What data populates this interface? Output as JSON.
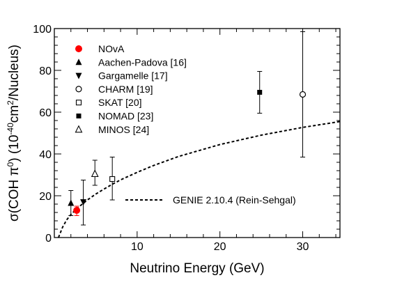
{
  "chart_data": {
    "type": "scatter",
    "xlabel": "Neutrino Energy (GeV)",
    "ylabel_parts": [
      "σ(COH π",
      "0",
      ") (10",
      "-40",
      "cm",
      "2",
      "/Nucleus)"
    ],
    "xlim": [
      0,
      34.5
    ],
    "ylim": [
      0,
      100
    ],
    "x_ticks": [
      10,
      20,
      30
    ],
    "y_ticks": [
      0,
      20,
      40,
      60,
      80,
      100
    ],
    "grid": false,
    "legend_position": "top-left",
    "series": [
      {
        "name": "NOvA",
        "marker": "filled-circle",
        "color": "#ff0000",
        "points": [
          {
            "x": 2.7,
            "y": 13.0,
            "ylow": 10.5,
            "yhigh": 15.0
          }
        ]
      },
      {
        "name": "Aachen-Padova [16]",
        "marker": "filled-triangle-up",
        "color": "#000000",
        "points": [
          {
            "x": 2.0,
            "y": 16.5,
            "ylow": 10.5,
            "yhigh": 22.5
          }
        ]
      },
      {
        "name": "Gargamelle [17]",
        "marker": "filled-triangle-down",
        "color": "#000000",
        "points": [
          {
            "x": 3.5,
            "y": 17.0,
            "ylow": 6.0,
            "yhigh": 27.5
          }
        ]
      },
      {
        "name": "CHARM [19]",
        "marker": "open-circle",
        "color": "#000000",
        "points": [
          {
            "x": 30.0,
            "y": 68.5,
            "ylow": 38.5,
            "yhigh": 98.5
          }
        ]
      },
      {
        "name": "SKAT [20]",
        "marker": "open-square",
        "color": "#000000",
        "points": [
          {
            "x": 7.0,
            "y": 28.0,
            "ylow": 18.0,
            "yhigh": 38.5
          }
        ]
      },
      {
        "name": "NOMAD [23]",
        "marker": "filled-square",
        "color": "#000000",
        "points": [
          {
            "x": 24.8,
            "y": 69.5,
            "ylow": 59.5,
            "yhigh": 79.5
          }
        ]
      },
      {
        "name": "MINOS [24]",
        "marker": "open-triangle-up",
        "color": "#000000",
        "points": [
          {
            "x": 4.9,
            "y": 30.5,
            "ylow": 25.0,
            "yhigh": 37.0
          }
        ]
      }
    ],
    "curve": {
      "name": "GENIE 2.10.4 (Rein-Sehgal)",
      "style": "dashed",
      "color": "#000000",
      "points": [
        [
          0.5,
          0
        ],
        [
          1.0,
          5.0
        ],
        [
          1.5,
          8.5
        ],
        [
          2.0,
          11.0
        ],
        [
          2.5,
          13.0
        ],
        [
          3.0,
          14.8
        ],
        [
          4.0,
          18.0
        ],
        [
          5.0,
          20.8
        ],
        [
          6.0,
          23.2
        ],
        [
          7.0,
          25.5
        ],
        [
          8.0,
          27.6
        ],
        [
          10.0,
          31.2
        ],
        [
          12.0,
          34.5
        ],
        [
          15.0,
          38.8
        ],
        [
          20.0,
          44.5
        ],
        [
          25.0,
          49.0
        ],
        [
          30.0,
          52.7
        ],
        [
          34.5,
          55.5
        ]
      ]
    }
  }
}
